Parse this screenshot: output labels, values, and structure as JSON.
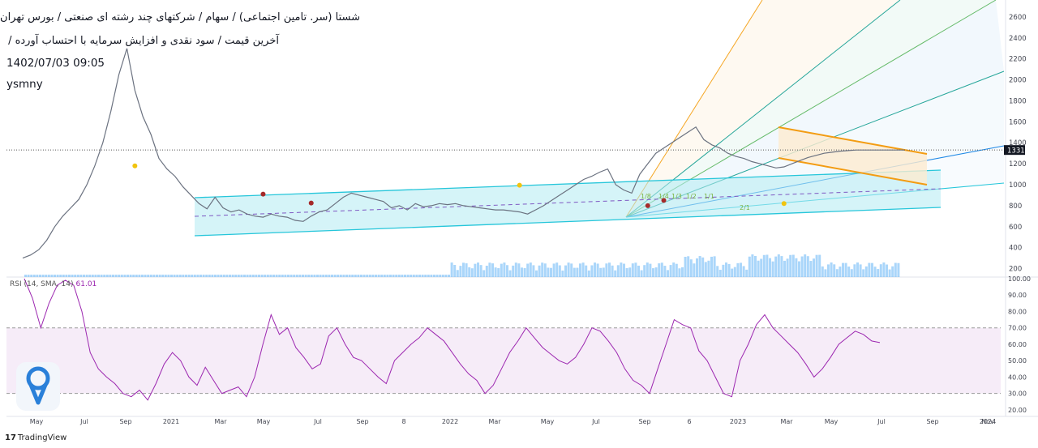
{
  "header": {
    "title_line1": "شستا (سر. تامین اجتماعی) / سهام / شرکتهای چند رشته ای صنعتی / بورس تهران",
    "title_line2": "آخرین قیمت / سود نقدی و افزایش سرمایه با احتساب آورده /",
    "datetime": "1402/07/03 09:05",
    "symbol": "ysmny"
  },
  "footer": {
    "logo_mark": "17",
    "brand": "TradingView"
  },
  "colors": {
    "price_line": "#9aa0ac",
    "channel": "#26c6da",
    "fan_orange": "#f5a623",
    "fan_blue": "#1e88e5",
    "wedge": "#f39c12",
    "rsi_line": "#9c27b0",
    "rsi_band": "#f3e5f5",
    "volume": "#64b5f6",
    "badge": "#2a80d9"
  },
  "chart_data": [
    {
      "type": "line",
      "name": "price",
      "x_ticks": [
        "May",
        "Jul",
        "Sep",
        "2021",
        "Mar",
        "May",
        "Jul",
        "Sep",
        "8",
        "2022",
        "Mar",
        "May",
        "Jul",
        "Sep",
        "6",
        "2023",
        "Mar",
        "May",
        "Jul",
        "Sep",
        "Nov",
        "2024"
      ],
      "y_ticks": [
        200,
        400,
        600,
        800,
        1000,
        1200,
        1400,
        1600,
        1800,
        2000,
        2200,
        2400,
        2600
      ],
      "ylim": [
        150,
        2700
      ],
      "last_price_label": "1331",
      "x": [
        0,
        4,
        8,
        12,
        16,
        20,
        24,
        28,
        32,
        36,
        40,
        44,
        48,
        52,
        56,
        60,
        64,
        68,
        72,
        76,
        80,
        84,
        88,
        92,
        96,
        100,
        104,
        108,
        112,
        116,
        120,
        124,
        128,
        132,
        136,
        140,
        144,
        148,
        152,
        156,
        160,
        164,
        168,
        172,
        176,
        180,
        184,
        188,
        192,
        196,
        200,
        204,
        208,
        212,
        216,
        220,
        224,
        228,
        232,
        236,
        240,
        244,
        248,
        252,
        256,
        260,
        264,
        268,
        272,
        276,
        280,
        284,
        288,
        292,
        296,
        300,
        304,
        308,
        312,
        316,
        320,
        324,
        328,
        332,
        336,
        340,
        344,
        348,
        352,
        356,
        360,
        364,
        368,
        372,
        376,
        380,
        384,
        388,
        392,
        396,
        400,
        404,
        408,
        412,
        416,
        420,
        424,
        428,
        432,
        436,
        440
      ],
      "values": [
        300,
        330,
        380,
        470,
        600,
        700,
        780,
        860,
        1000,
        1180,
        1400,
        1700,
        2050,
        2300,
        1900,
        1650,
        1480,
        1250,
        1150,
        1080,
        980,
        900,
        820,
        770,
        880,
        780,
        740,
        760,
        720,
        700,
        690,
        720,
        700,
        690,
        660,
        650,
        700,
        740,
        760,
        820,
        880,
        920,
        900,
        880,
        860,
        840,
        780,
        800,
        760,
        820,
        790,
        800,
        820,
        810,
        820,
        800,
        790,
        780,
        770,
        760,
        760,
        750,
        740,
        720,
        760,
        800,
        850,
        900,
        950,
        1000,
        1050,
        1080,
        1120,
        1150,
        1000,
        950,
        920,
        1100,
        1200,
        1300,
        1350,
        1400,
        1450,
        1500,
        1550,
        1430,
        1380,
        1350,
        1300,
        1270,
        1250,
        1220,
        1200,
        1180,
        1160,
        1170,
        1200,
        1230,
        1260,
        1280,
        1300,
        1310,
        1320,
        1325,
        1331,
        1331,
        1331,
        1331,
        1331,
        1331,
        1331
      ],
      "markers": [
        {
          "i": 14,
          "value": 1180,
          "color": "#f1c40f"
        },
        {
          "i": 30,
          "value": 910,
          "color": "#a52a2a"
        },
        {
          "i": 36,
          "value": 825,
          "color": "#a52a2a"
        },
        {
          "i": 62,
          "value": 995,
          "color": "#f1c40f"
        },
        {
          "i": 78,
          "value": 800,
          "color": "#a52a2a"
        },
        {
          "i": 80,
          "value": 850,
          "color": "#a52a2a"
        },
        {
          "i": 95,
          "value": 820,
          "color": "#f1c40f"
        }
      ],
      "fan_labels": [
        "1/8",
        "1/4",
        "1/3",
        "1/2",
        "1/1",
        "2/1"
      ]
    },
    {
      "type": "line",
      "name": "RSI",
      "legend": "RSI (14, SMA, 14)",
      "last_value": "61.01",
      "y_ticks": [
        "100.00",
        "90.00",
        "80.00",
        "70.00",
        "60.00",
        "50.00",
        "40.00",
        "30.00",
        "20.00"
      ],
      "ylim": [
        17,
        100
      ],
      "bands": [
        30,
        70
      ],
      "values": [
        100,
        88,
        70,
        85,
        96,
        99,
        96,
        80,
        55,
        45,
        40,
        36,
        30,
        28,
        32,
        26,
        36,
        48,
        55,
        50,
        40,
        35,
        46,
        38,
        30,
        32,
        34,
        28,
        40,
        60,
        78,
        66,
        70,
        58,
        52,
        45,
        48,
        65,
        70,
        60,
        52,
        50,
        45,
        40,
        36,
        50,
        55,
        60,
        64,
        70,
        66,
        62,
        55,
        48,
        42,
        38,
        30,
        35,
        45,
        55,
        62,
        70,
        64,
        58,
        54,
        50,
        48,
        52,
        60,
        70,
        68,
        62,
        55,
        45,
        38,
        35,
        30,
        45,
        60,
        75,
        72,
        70,
        56,
        50,
        40,
        30,
        28,
        50,
        60,
        72,
        78,
        70,
        65,
        60,
        55,
        48,
        40,
        45,
        52,
        60,
        64,
        68,
        66,
        62,
        61
      ]
    }
  ]
}
